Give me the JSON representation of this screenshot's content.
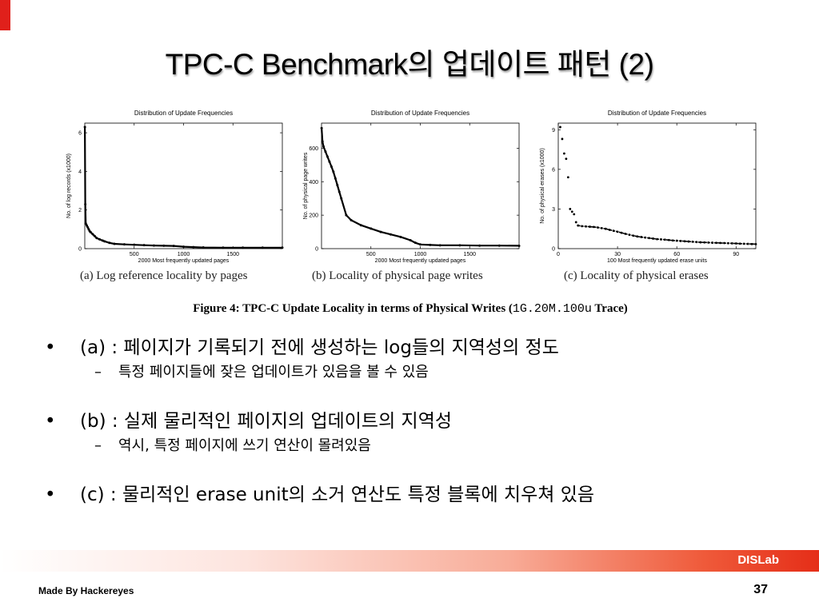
{
  "slide": {
    "title": "TPC-C Benchmark의 업데이트 패턴 (2)",
    "brand": "DISLab",
    "footer_left": "Made By Hackereyes",
    "page_number": "37",
    "accent_color": "#e0201b"
  },
  "figure": {
    "caption_prefix": "Figure 4:  TPC-C Update Locality in terms of Physical Writes (",
    "caption_mono": "1G.20M.100u",
    "caption_suffix": " Trace)"
  },
  "bullets": [
    {
      "text": "(a) : 페이지가 기록되기 전에 생성하는 log들의 지역성의 정도",
      "sub": "특정 페이지들에 잦은 업데이트가 있음을 볼 수 있음"
    },
    {
      "text": "(b) : 실제 물리적인 페이지의 업데이트의 지역성",
      "sub": "역시, 특정 페이지에 쓰기 연산이 몰려있음"
    },
    {
      "text": "(c) : 물리적인 erase unit의 소거 연산도 특정 블록에 치우쳐 있음",
      "sub": ""
    }
  ],
  "chart_data": [
    {
      "type": "scatter",
      "title": "Distribution of Update Frequencies",
      "xlabel": "2000 Most frequently updated pages",
      "ylabel": "No. of log records (x1000)",
      "caption": "(a) Log reference locality by pages",
      "xlim": [
        0,
        2000
      ],
      "ylim": [
        0,
        6.5
      ],
      "xticks": [
        "500",
        "1000",
        "1500"
      ],
      "yticks": [
        "0",
        "2",
        "4",
        "6"
      ],
      "x": [
        1,
        5,
        10,
        20,
        30,
        40,
        50,
        60,
        80,
        100,
        120,
        150,
        180,
        200,
        250,
        300,
        400,
        500,
        600,
        700,
        800,
        900,
        1000,
        1100,
        1200,
        1400,
        1600,
        1800,
        2000
      ],
      "y": [
        6.3,
        2.3,
        1.3,
        1.2,
        1.1,
        1.0,
        0.9,
        0.85,
        0.75,
        0.65,
        0.55,
        0.48,
        0.42,
        0.38,
        0.3,
        0.25,
        0.22,
        0.2,
        0.18,
        0.16,
        0.15,
        0.14,
        0.1,
        0.08,
        0.06,
        0.05,
        0.05,
        0.05,
        0.05
      ]
    },
    {
      "type": "scatter",
      "title": "Distribution of Update Frequencies",
      "xlabel": "2000 Most frequently updated pages",
      "ylabel": "No. of physical page writes",
      "caption": "(b) Locality of physical page writes",
      "xlim": [
        0,
        2000
      ],
      "ylim": [
        0,
        750
      ],
      "xticks": [
        "500",
        "1000",
        "1500"
      ],
      "yticks": [
        "0",
        "200",
        "400",
        "600"
      ],
      "x": [
        1,
        10,
        20,
        40,
        60,
        80,
        100,
        120,
        140,
        160,
        180,
        200,
        250,
        300,
        400,
        500,
        600,
        700,
        800,
        900,
        950,
        1000,
        1100,
        1200,
        1400,
        1600,
        1800,
        2000
      ],
      "y": [
        720,
        640,
        610,
        580,
        550,
        520,
        490,
        460,
        420,
        380,
        340,
        300,
        200,
        170,
        140,
        120,
        100,
        85,
        70,
        50,
        35,
        25,
        22,
        20,
        20,
        18,
        18,
        17
      ]
    },
    {
      "type": "scatter",
      "title": "Distribution of Update Frequencies",
      "xlabel": "100 Most frequently updated erase units",
      "ylabel": "No. of physical erases (x1000)",
      "caption": "(c) Locality of physical erases",
      "xlim": [
        0,
        100
      ],
      "ylim": [
        0,
        9.5
      ],
      "xticks": [
        "0",
        "30",
        "60",
        "90"
      ],
      "yticks": [
        "0",
        "3",
        "6",
        "9"
      ],
      "x": [
        1,
        2,
        3,
        4,
        5,
        6,
        7,
        8,
        9,
        10,
        12,
        14,
        16,
        18,
        20,
        22,
        24,
        26,
        28,
        30,
        32,
        34,
        36,
        38,
        40,
        42,
        44,
        46,
        48,
        50,
        52,
        54,
        56,
        58,
        60,
        62,
        64,
        66,
        68,
        70,
        72,
        74,
        76,
        78,
        80,
        82,
        84,
        86,
        88,
        90,
        92,
        94,
        96,
        98,
        100
      ],
      "y": [
        9.2,
        8.3,
        7.2,
        6.8,
        5.4,
        3.0,
        2.8,
        2.6,
        2.0,
        1.75,
        1.7,
        1.68,
        1.66,
        1.64,
        1.6,
        1.55,
        1.5,
        1.42,
        1.35,
        1.28,
        1.2,
        1.12,
        1.05,
        0.98,
        0.92,
        0.88,
        0.84,
        0.8,
        0.76,
        0.72,
        0.7,
        0.68,
        0.65,
        0.62,
        0.6,
        0.58,
        0.56,
        0.54,
        0.52,
        0.5,
        0.48,
        0.47,
        0.46,
        0.45,
        0.44,
        0.43,
        0.42,
        0.41,
        0.4,
        0.39,
        0.38,
        0.37,
        0.36,
        0.35,
        0.34
      ]
    }
  ]
}
